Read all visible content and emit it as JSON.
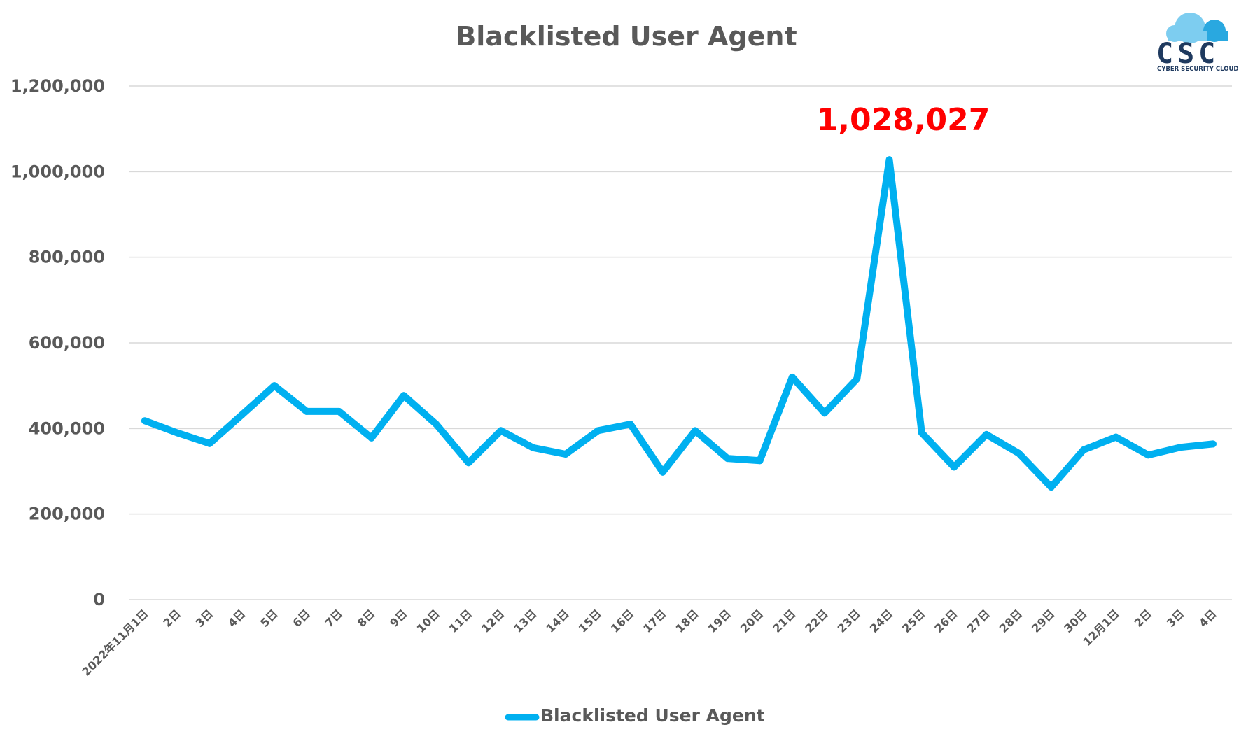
{
  "logo": {
    "name": "CSC",
    "subtitle": "CYBER SECURITY CLOUD",
    "colors": {
      "cloud_light": "#7dcdf0",
      "cloud_dark": "#29a8e0",
      "text": "#1f3a5f"
    }
  },
  "chart_data": {
    "type": "line",
    "title": "Blacklisted User Agent",
    "xlabel": "",
    "ylabel": "",
    "ylim": [
      0,
      1200000
    ],
    "yticks": [
      0,
      200000,
      400000,
      600000,
      800000,
      1000000,
      1200000
    ],
    "ytick_labels": [
      "0",
      "200,000",
      "400,000",
      "600,000",
      "800,000",
      "1,000,000",
      "1,200,000"
    ],
    "grid": true,
    "legend_position": "bottom",
    "categories": [
      "2022年11月1日",
      "2日",
      "3日",
      "4日",
      "5日",
      "6日",
      "7日",
      "8日",
      "9日",
      "10日",
      "11日",
      "12日",
      "13日",
      "14日",
      "15日",
      "16日",
      "17日",
      "18日",
      "19日",
      "20日",
      "21日",
      "22日",
      "23日",
      "24日",
      "25日",
      "26日",
      "27日",
      "28日",
      "29日",
      "30日",
      "12月1日",
      "2日",
      "3日",
      "4日"
    ],
    "series": [
      {
        "name": "Blacklisted User Agent",
        "color": "#00b0f0",
        "values": [
          418000,
          390000,
          365000,
          432000,
          500000,
          440000,
          440000,
          378000,
          477000,
          410000,
          320000,
          395000,
          355000,
          340000,
          395000,
          410000,
          298000,
          395000,
          330000,
          325000,
          520000,
          436000,
          516000,
          1028027,
          390000,
          310000,
          386000,
          342000,
          263000,
          350000,
          380000,
          338000,
          356000,
          364000
        ]
      }
    ],
    "annotations": [
      {
        "category_index": 23,
        "text": "1,028,027",
        "color": "#ff0000"
      }
    ]
  }
}
